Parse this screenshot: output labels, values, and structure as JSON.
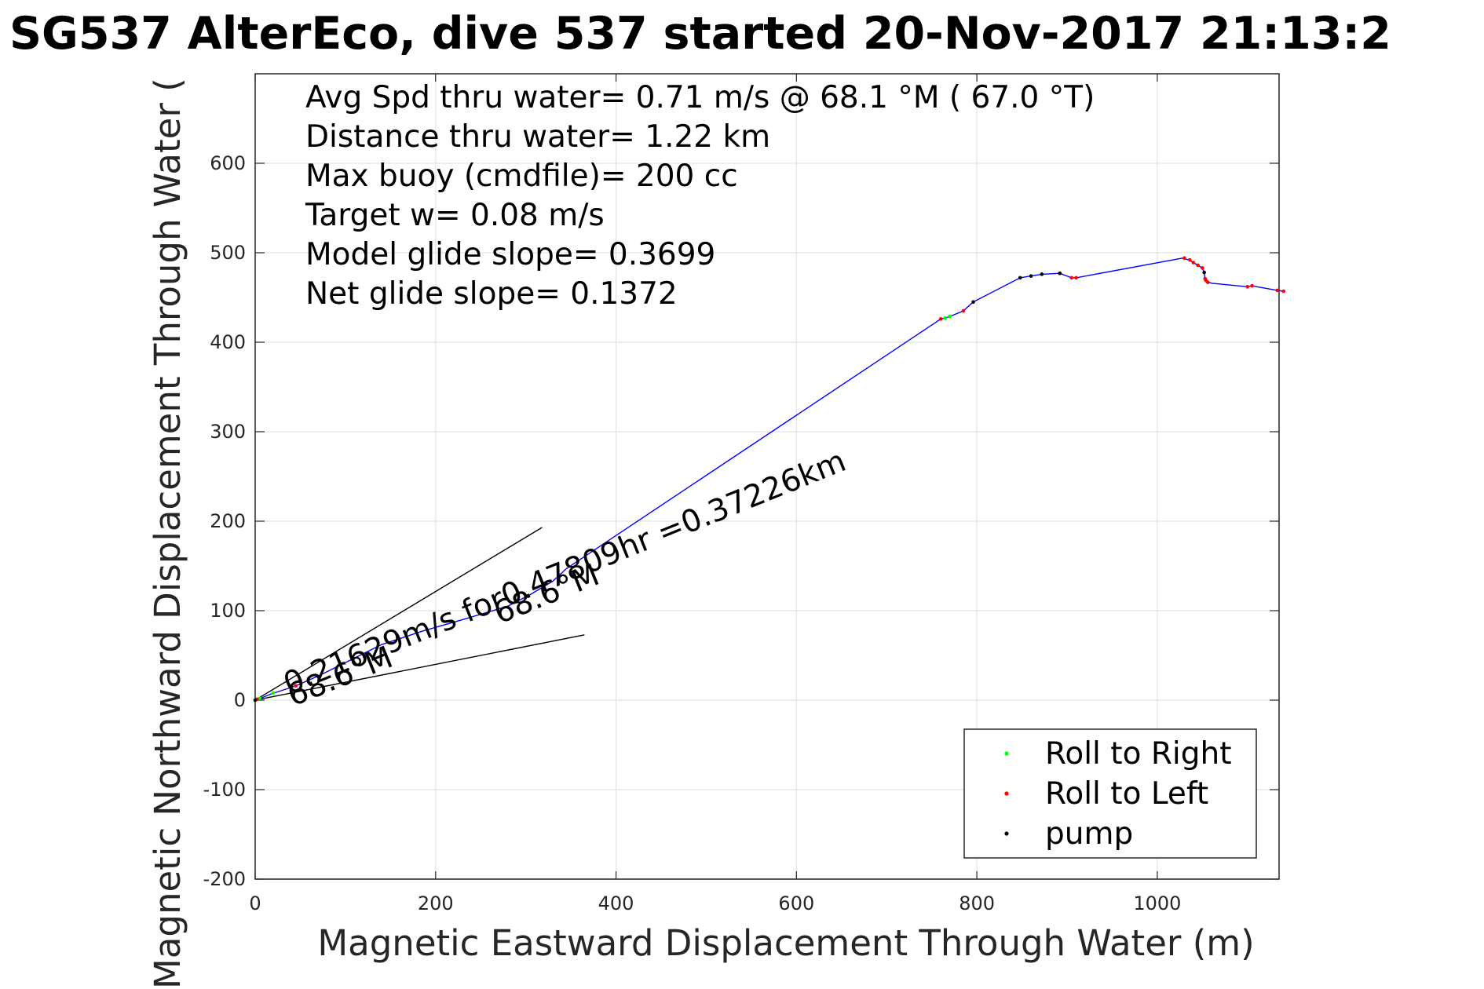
{
  "chart_data": {
    "type": "scatter",
    "title": "SG537 AlterEco, dive 537 started 20-Nov-2017 21:13:2",
    "xlabel": "Magnetic Eastward Displacement Through Water (m)",
    "ylabel": "Magnetic Northward Displacement Through Water (",
    "xlim": [
      0,
      1135
    ],
    "ylim": [
      -200,
      700
    ],
    "xticks": [
      0,
      200,
      400,
      600,
      800,
      1000
    ],
    "yticks": [
      -200,
      -100,
      0,
      100,
      200,
      300,
      400,
      500,
      600
    ],
    "grid": true,
    "legend_position": "bottom-right",
    "annotations": [
      "Avg Spd thru water=  0.71 m/s @  68.1 °M ( 67.0 °T)",
      "Distance thru water=  1.22 km",
      "Max buoy (cmdfile)= 200 cc",
      "Target w= 0.08 m/s",
      "Model glide slope= 0.3699",
      "Net glide slope= 0.1372"
    ],
    "slanted_labels": [
      "0.21629m/s for0.47809hr =0.37226km",
      "68.6°M",
      "68.6°M"
    ],
    "track": {
      "name": "track",
      "color": "#0000ff",
      "x": [
        0,
        8,
        18,
        30,
        45,
        70,
        100,
        140,
        185,
        230,
        280,
        305,
        330,
        345,
        760,
        768,
        785,
        796,
        848,
        860,
        872,
        892,
        905,
        910,
        1028,
        1035,
        1040,
        1045,
        1050,
        1052,
        1053,
        1055,
        1060,
        1100,
        1105,
        1133,
        1140
      ],
      "y": [
        0,
        3,
        7,
        11,
        16,
        27,
        42,
        62,
        77,
        90,
        105,
        118,
        133,
        147,
        426,
        428,
        435,
        445,
        472,
        474,
        476,
        477,
        472,
        472,
        494,
        492,
        489,
        486,
        483,
        478,
        471,
        468,
        466,
        462,
        463,
        458,
        457
      ]
    },
    "series": [
      {
        "name": "Roll to Right",
        "color": "#00ff00",
        "x": [
          5,
          20,
          765,
          770
        ],
        "y": [
          2,
          8,
          427,
          429
        ]
      },
      {
        "name": "Roll to Left",
        "color": "#ff0000",
        "x": [
          2,
          45,
          50,
          760,
          785,
          892,
          905,
          910,
          1030,
          1036,
          1040,
          1045,
          1050,
          1053,
          1054,
          1056,
          1100,
          1105,
          1133,
          1140
        ],
        "y": [
          1,
          16,
          22,
          426,
          435,
          477,
          472,
          472,
          494,
          492,
          489,
          486,
          483,
          471,
          469,
          467,
          462,
          463,
          458,
          457
        ]
      },
      {
        "name": "pump",
        "color": "#000000",
        "x": [
          0,
          796,
          848,
          860,
          872,
          892,
          1052
        ],
        "y": [
          0,
          445,
          472,
          474,
          476,
          477,
          478
        ]
      }
    ],
    "heading_lines": [
      {
        "x": [
          0,
          318
        ],
        "y": [
          0,
          193
        ]
      },
      {
        "x": [
          0,
          365
        ],
        "y": [
          0,
          73
        ]
      }
    ]
  }
}
